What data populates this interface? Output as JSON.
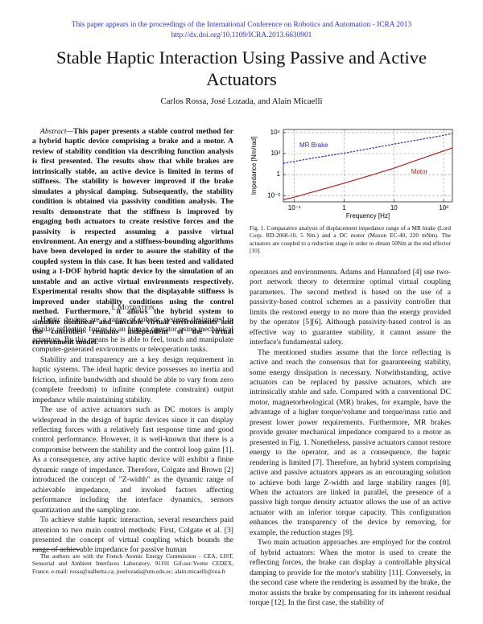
{
  "header": {
    "line1": "This paper appears in the proceedings of the International Conference on Robotics and Automation - ICRA 2013",
    "line2": "http://dx.doi.org/10.1109/ICRA.2013.6630901"
  },
  "title": "Stable Haptic Interaction Using Passive and Active Actuators",
  "authors": "Carlos Rossa, José Lozada, and Alain Micaelli",
  "abstract": {
    "label": "Abstract—",
    "text": "This paper presents a stable control method for a hybrid haptic device comprising a brake and a motor. A review of stability condition via describing function analysis is first presented. The results show that while brakes are intrinsically stable, an active device is limited in terms of stiffness. The stability is however improved if the brake simulates a physical damping. Subsequently, the stability condition is obtained via passivity condition analysis. The results demonstrate that the stiffness is improved by engaging both actuators to create resistive forces and the passivity is respected assuming a passive virtual environment. An energy and a stiffness-bounding algorithms have been developed in order to assure the stability of the coupled system in this case. It has been tested and validated using a 1-DOF hybrid haptic device by the simulation of an unstable and an active virtual environments respectively. Experimental results show that the displayable stiffness is improved under stability conditions using the control method. Furthermore, it allows the hybrid system to simulate nonlinear and unstable virtual environments and the controller remains independent of the virtual environment model."
  },
  "chart_data": {
    "type": "line",
    "xlabel": "Frequency [Hz]",
    "ylabel": "Impedance [Nm/rad]",
    "x": [
      0.06,
      0.1,
      0.3,
      1,
      3,
      10,
      30,
      100,
      150
    ],
    "series": [
      {
        "name": "MR Brake",
        "color": "#2a2ab8",
        "dashed": true,
        "values": [
          12,
          18,
          45,
          110,
          280,
          800,
          2000,
          5500,
          8000
        ]
      },
      {
        "name": "Motor",
        "color": "#b0201e",
        "dashed": false,
        "values": [
          0.004,
          0.007,
          0.03,
          0.15,
          0.7,
          4,
          25,
          180,
          350
        ]
      }
    ],
    "xscale": "log",
    "yscale": "log",
    "grid": true,
    "xlim": [
      0.06,
      150
    ],
    "ylim": [
      0.0025,
      20000
    ],
    "xticks": [
      {
        "value": 0.1,
        "label": "10⁻¹"
      },
      1,
      10,
      {
        "value": 100,
        "label": "10²"
      }
    ],
    "yticks": [
      {
        "value": 0.01,
        "label": "10⁻²"
      },
      1,
      {
        "value": 100,
        "label": "10²"
      },
      {
        "value": 10000,
        "label": "10⁴"
      }
    ]
  },
  "caption": "Fig. 1.   Comparative analysis of displacement impedance range of a MR brake (Lord Corp. RD-2068-10, 5 Nm.) and a DC motor (Maxon EC-40, 220 mNm). The actuators are coupled to a reduction stage in order to obtain 50Nm at the end effector [10].",
  "section": "I. Motivation",
  "left_paragraphs": [
    "Haptic devices are a range of robotic systems designated to display reflecting forces to an human operator using mechanical actuators. By this means he is able to feel, touch and manipulate computer-generated environments or teleoperation tasks.",
    "Stability and transparency are a key design requirement in haptic systems. The ideal haptic device possesses no inertia and friction, infinite bandwidth and should be able to vary from zero (complete freedom) to infinite (complete constraint) output impedance while maintaining stability.",
    "The use of active actuators such as DC motors is amply widespread in the design of haptic devices since it can display reflecting forces with a relatively fast response time and good control performance. However, it is well-known that there is a compromise between the stability and the control loop gains [1]. As a consequence, any active haptic device will exhibit a finite dynamic range of impedance. Therefore, Colgate and Brown [2] introduced the concept of \"Z-width\" as the dynamic range of achievable impedance, and invoked factors affecting performance including the interface dynamics, sensors quantization and the sampling rate.",
    "To achieve stable haptic interaction, several researchers paid attention to two main control methods: First, Colgate et al. [3] presented the concept of virtual coupling which bounds the range of achievable impedance for passive human"
  ],
  "footnote": "The authors are with the French Atomic Energy Commission - CEA, LIST, Sensorial and Ambient Interfaces Laboratory, 91191 Gif-sur-Yvette CEDEX, France. e-mail: rossa@ualberta.ca; joselozada@utn.edu.ec; alain.micaelli@cea.fr",
  "right_paragraphs": [
    "operators and environments. Adams and Hannaford [4] use two-port network theory to determine optimal virtual coupling parameters. The second method is based on the use of a passivity-based control schemes as a passivity controller that limits the restored energy to no more than the energy provided by the operator [5][6]. Although passivity-based control is an effective way to guarantee stability, it cannot assure the interface's fundamental safety.",
    "The mentioned studies assume that the force reflecting is active and reach the consensus that for guaranteeing stability, some energy dissipation is necessary. Notwithstanding, active actuators can be replaced by passive actuators, which are intrinsically stable and safe. Compared with a conventional DC motor, magnetorheological (MR) brakes, for example, have the advantage of a higher torque/volume and torque/mass ratio and present lower power requirements. Furthermore, MR brakes provide greater mechanical impedance compared to a motor as presented in Fig. 1. Nonetheless, passive actuators cannot restore energy to the operator, and as a consequence, the haptic rendering is limited [7]. Therefore, an hybrid system comprising active and passive actuators appears as an encouraging solution to achieve both large Z-width and large stability ranges [8]. When the actuators are linked in parallel, the presence of a passive high torque density actuator allows the use of an active actuator with an inferior torque capacity. This configuration enhances the transparency of the device by removing, for example, the reduction stages [9].",
    "Two main actuation approaches are employed for the control of hybrid actuators: When the motor is used to create the reflecting forces, the brake can display a controllable physical damping to provide for the motor's stability [11]. Conversely, in the second case where the rendering is assumed by the brake, the motor assists the brake by compensating for its inherent residual torque [12]. In the first case, the stability of"
  ]
}
